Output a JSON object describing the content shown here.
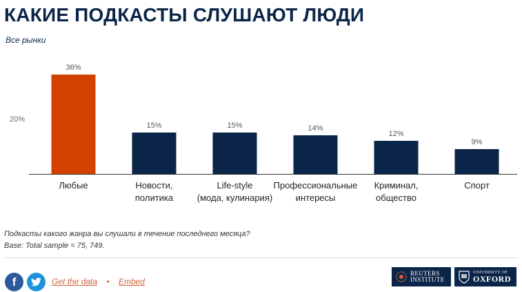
{
  "header": {
    "title": "КАКИЕ ПОДКАСТЫ СЛУШАЮТ ЛЮДИ",
    "subtitle": "Все рынки"
  },
  "chart_data": {
    "type": "bar",
    "categories": [
      [
        "Любые"
      ],
      [
        "Новости,",
        "политика"
      ],
      [
        "Life-style",
        "(мода, кулинария)"
      ],
      [
        "Профессиональные",
        "интересы"
      ],
      [
        "Криминал,",
        "общество"
      ],
      [
        "Спорт"
      ]
    ],
    "values": [
      36,
      15,
      15,
      14,
      12,
      9
    ],
    "value_labels": [
      "36%",
      "15%",
      "15%",
      "14%",
      "12%",
      "9%"
    ],
    "bar_colors": [
      "#d24100",
      "#0b2548",
      "#0b2548",
      "#0b2548",
      "#0b2548",
      "#0b2548"
    ],
    "yticks": [
      {
        "value": 20,
        "label": "20%"
      }
    ],
    "ylim": [
      0,
      40
    ],
    "grid": false,
    "legend": "none"
  },
  "footer": {
    "question": "Подкасты какого жанра вы слушали в течение последнего месяца?",
    "base": "Base: Total sample = 75, 749.",
    "get_data": "Get the data",
    "separator": "•",
    "embed": "Embed",
    "facebook_icon": "f",
    "reuters_line1": "REUTERS",
    "reuters_line2": "INSTITUTE",
    "oxford_line1": "UNIVERSITY OF",
    "oxford_line2": "OXFORD"
  }
}
